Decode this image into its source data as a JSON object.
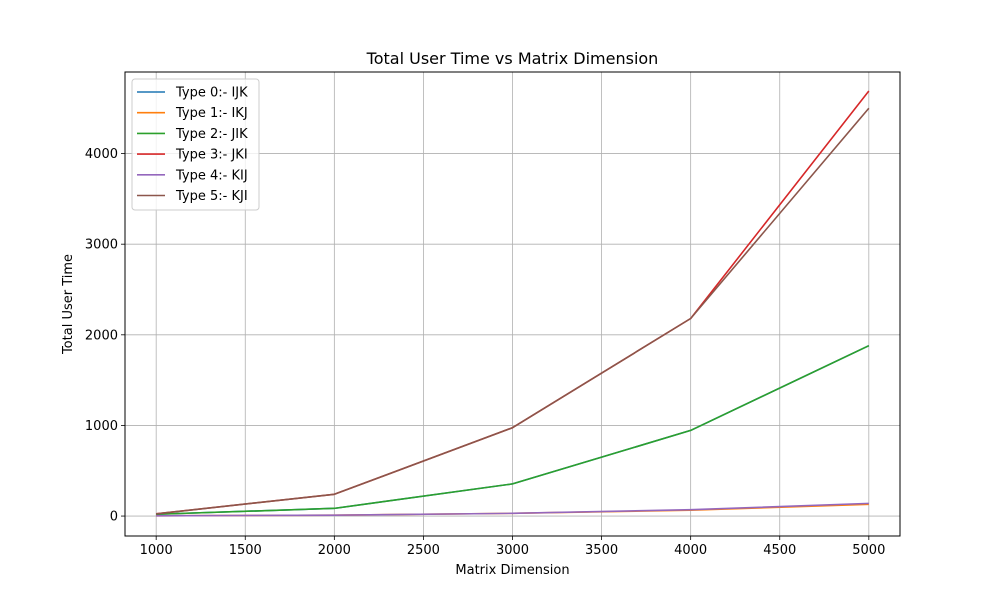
{
  "chart_data": {
    "type": "line",
    "title": "Total User Time vs Matrix Dimension",
    "xlabel": "Matrix Dimension",
    "ylabel": "Total User Time",
    "x": [
      1000,
      2000,
      3000,
      4000,
      5000
    ],
    "xlim": [
      825,
      5175
    ],
    "ylim": [
      -220,
      4900
    ],
    "xticks": [
      1000,
      1500,
      2000,
      2500,
      3000,
      3500,
      4000,
      4500,
      5000
    ],
    "yticks": [
      0,
      1000,
      2000,
      3000,
      4000
    ],
    "grid": true,
    "legend_position": "top-left",
    "series": [
      {
        "name": "Type 0:- IJK",
        "color": "#1f77b4",
        "values": [
          20,
          85,
          355,
          945,
          1880
        ]
      },
      {
        "name": "Type 1:- IKJ",
        "color": "#ff7f0e",
        "values": [
          3,
          10,
          30,
          65,
          130
        ]
      },
      {
        "name": "Type 2:- JIK",
        "color": "#2ca02c",
        "values": [
          20,
          85,
          355,
          945,
          1880
        ]
      },
      {
        "name": "Type 3:- JKI",
        "color": "#d62728",
        "values": [
          25,
          240,
          975,
          2180,
          4690
        ]
      },
      {
        "name": "Type 4:- KIJ",
        "color": "#9467bd",
        "values": [
          3,
          10,
          30,
          70,
          140
        ]
      },
      {
        "name": "Type 5:- KJI",
        "color": "#8c564b",
        "values": [
          25,
          240,
          975,
          2180,
          4500
        ]
      }
    ]
  }
}
